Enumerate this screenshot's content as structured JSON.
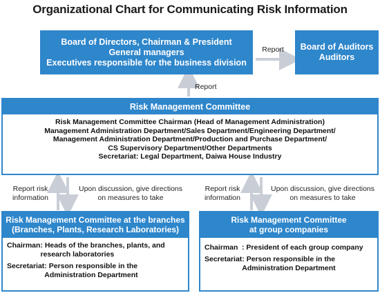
{
  "title": "Organizational Chart for Communicating Risk Information",
  "board": {
    "lines": [
      "Board of Directors, Chairman & President",
      "General managers",
      "Executives responsible for the business division"
    ]
  },
  "auditors": {
    "lines": [
      "Board of Auditors",
      "Auditors"
    ]
  },
  "board_to_auditors_label": "Report",
  "committee_to_board_label": "Report",
  "committee": {
    "header": "Risk Management Committee",
    "lines": [
      "Risk Management Committee Chairman (Head of Management Administration)",
      "Management Administration Department/Sales Department/Engineering Department/",
      "Management Administration Department/Production and Purchase Department/",
      "CS Supervisory Department/Other Departments",
      "Secretariat: Legal Department, Daiwa House Industry"
    ]
  },
  "left_arrows": {
    "up_label": [
      "Report risk",
      "information"
    ],
    "down_label": [
      "Upon discussion, give directions",
      "on measures to take"
    ]
  },
  "right_arrows": {
    "up_label": [
      "Report risk",
      "information"
    ],
    "down_label": [
      "Upon discussion, give directions",
      "on measures to take"
    ]
  },
  "branches": {
    "header": [
      "Risk Management Committee at the branches",
      "(Branches, Plants, Research Laboratories)"
    ],
    "chairman_term": "Chairman",
    "chairman_text": ": Heads of the branches, plants, and research laboratories",
    "secretariat_term": "Secretariat",
    "secretariat_text": ": Person responsible in the Administration Department"
  },
  "group": {
    "header": [
      "Risk Management Committee",
      "at group companies"
    ],
    "chairman_term": "Chairman",
    "chairman_text": ": President of each group company",
    "secretariat_term": "Secretariat",
    "secretariat_text": ": Person responsible in the Administration Department"
  },
  "colors": {
    "accent": "#2e86cb",
    "arrow": "#c9ced6"
  }
}
